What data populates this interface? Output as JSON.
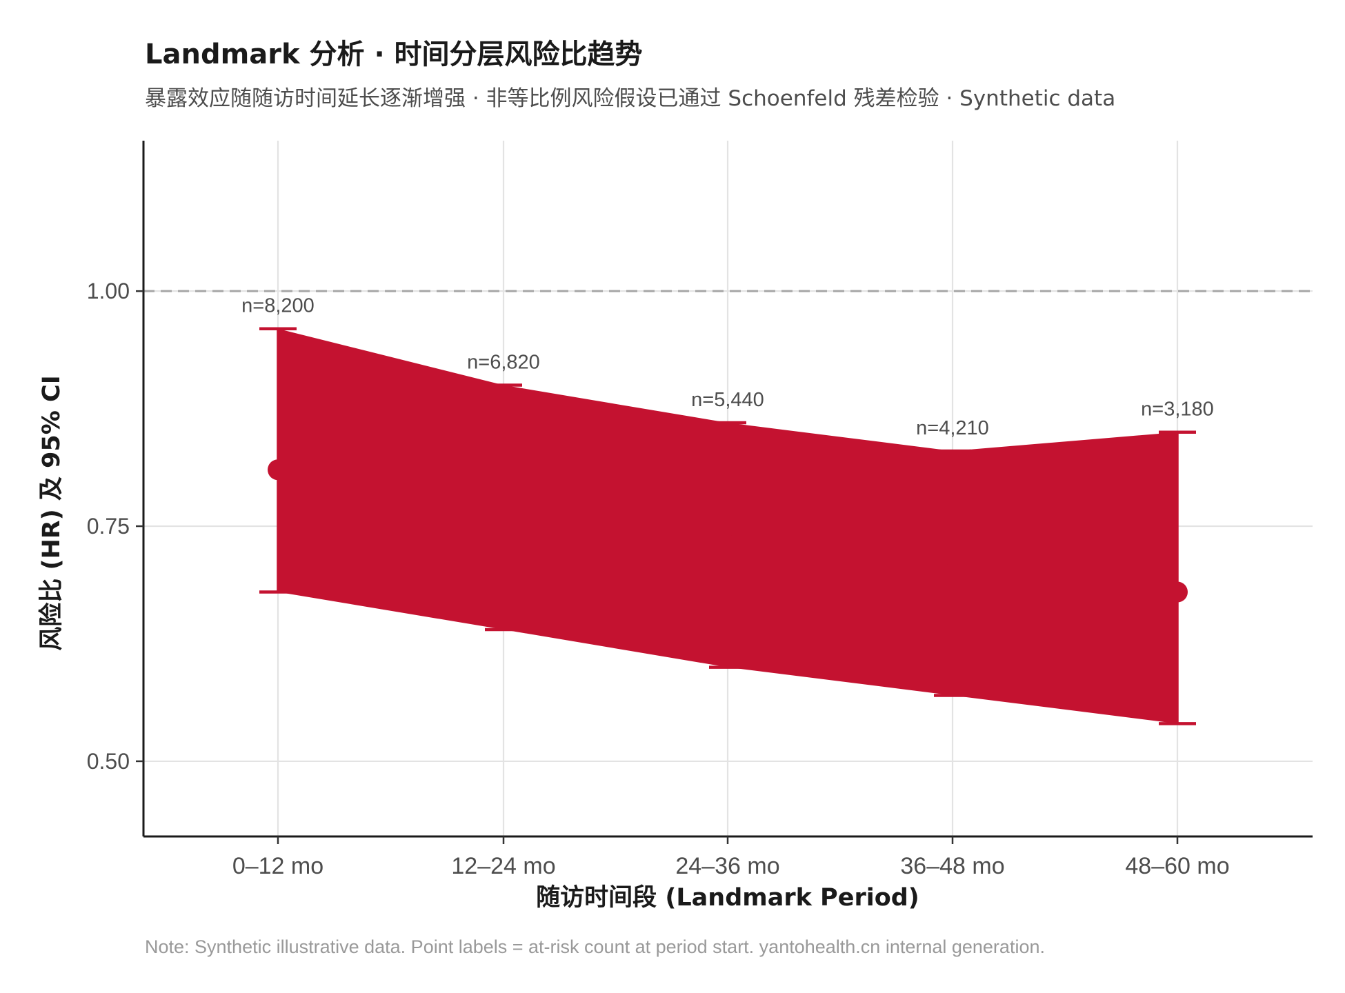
{
  "chart_data": {
    "type": "line",
    "title": "Landmark 分析 · 时间分层风险比趋势",
    "subtitle": "暴露效应随随访时间延长逐渐增强 · 非等比例风险假设已通过 Schoenfeld 残差检验 · Synthetic data",
    "xlabel": "随访时间段 (Landmark Period)",
    "ylabel": "风险比 (HR) 及 95% CI",
    "caption": "Note: Synthetic illustrative data. Point labels = at-risk count at period start. yantohealth.cn internal generation.",
    "categories": [
      "0–12 mo",
      "12–24 mo",
      "24–36 mo",
      "36–48 mo",
      "48–60 mo"
    ],
    "series": [
      {
        "hr": [
          0.81,
          0.77,
          0.73,
          0.7,
          0.68
        ],
        "ci_lower": [
          0.68,
          0.64,
          0.6,
          0.57,
          0.54
        ],
        "ci_upper": [
          0.96,
          0.9,
          0.86,
          0.83,
          0.85
        ],
        "n_labels": [
          "n=8,200",
          "n=6,820",
          "n=5,440",
          "n=4,210",
          "n=3,180"
        ]
      }
    ],
    "ylim": [
      0.42,
      1.16
    ],
    "yticks": [
      0.5,
      0.75,
      1.0
    ],
    "ytick_labels": [
      "0.50",
      "0.75",
      "1.00"
    ],
    "reference_line": 1.0,
    "grid": true,
    "color": "#C41230"
  }
}
